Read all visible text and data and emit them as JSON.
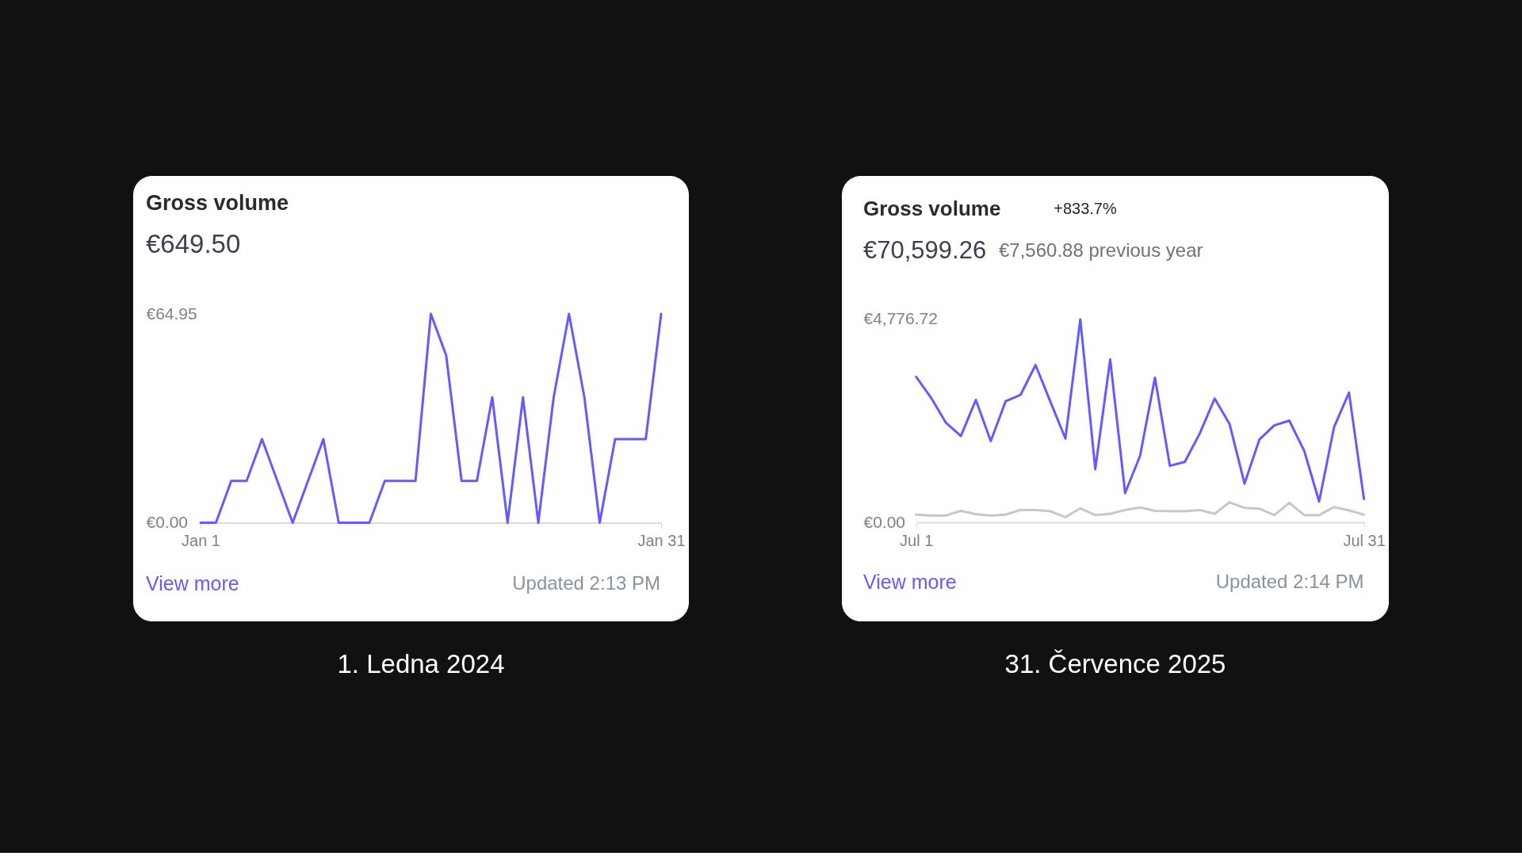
{
  "chart_data": [
    {
      "type": "line",
      "title": "Gross volume",
      "subtitle": "€649.50",
      "categories": [
        "Jan 1",
        null,
        null,
        null,
        null,
        null,
        null,
        null,
        null,
        null,
        null,
        null,
        null,
        null,
        null,
        null,
        null,
        null,
        null,
        null,
        null,
        null,
        null,
        null,
        null,
        null,
        null,
        null,
        null,
        null,
        "Jan 31"
      ],
      "series": [
        {
          "color": "#635bff",
          "values": [
            0,
            0,
            13,
            13,
            26,
            13,
            0,
            13,
            26,
            0,
            0,
            0,
            13,
            13,
            13,
            64.95,
            52,
            13,
            13,
            39,
            0,
            39,
            0,
            39,
            64.95,
            39,
            0,
            26,
            26,
            26,
            64.95
          ]
        }
      ],
      "ylim": [
        0,
        64.95
      ],
      "yticks": [
        {
          "value": 0,
          "label": "€0.00"
        },
        {
          "value": 64.95,
          "label": "€64.95"
        }
      ],
      "annotations": [
        "View more",
        "Updated 2:13 PM",
        "1. Ledna 2024"
      ]
    },
    {
      "type": "line",
      "title": "Gross volume",
      "subtitle": "€70,599.26",
      "categories": [
        "Jul 1",
        null,
        null,
        null,
        null,
        null,
        null,
        null,
        null,
        null,
        null,
        null,
        null,
        null,
        null,
        null,
        null,
        null,
        null,
        null,
        null,
        null,
        null,
        null,
        null,
        null,
        null,
        null,
        null,
        null,
        "Jul 31"
      ],
      "series": [
        {
          "color": "#635bff",
          "values": [
            3420,
            2930,
            2340,
            2030,
            2880,
            1910,
            2850,
            3000,
            3700,
            2830,
            1970,
            4770,
            1250,
            3830,
            690,
            1560,
            3400,
            1330,
            1420,
            2090,
            2910,
            2310,
            910,
            1950,
            2280,
            2390,
            1680,
            490,
            2240,
            3050,
            550
          ]
        },
        {
          "color": "#c4c7ce",
          "values": [
            180,
            160,
            160,
            270,
            190,
            160,
            180,
            290,
            290,
            260,
            120,
            330,
            170,
            200,
            290,
            350,
            270,
            260,
            260,
            290,
            200,
            470,
            340,
            320,
            170,
            460,
            170,
            170,
            360,
            280,
            180
          ]
        }
      ],
      "ylim": [
        0,
        4776.72
      ],
      "yticks": [
        {
          "value": 0,
          "label": "€0.00"
        },
        {
          "value": 4776.72,
          "label": "€4,776.72"
        }
      ],
      "annotations": [
        "+833.7%",
        "€7,560.88 previous year",
        "View more",
        "Updated 2:14 PM",
        "31. Července 2025"
      ]
    }
  ]
}
